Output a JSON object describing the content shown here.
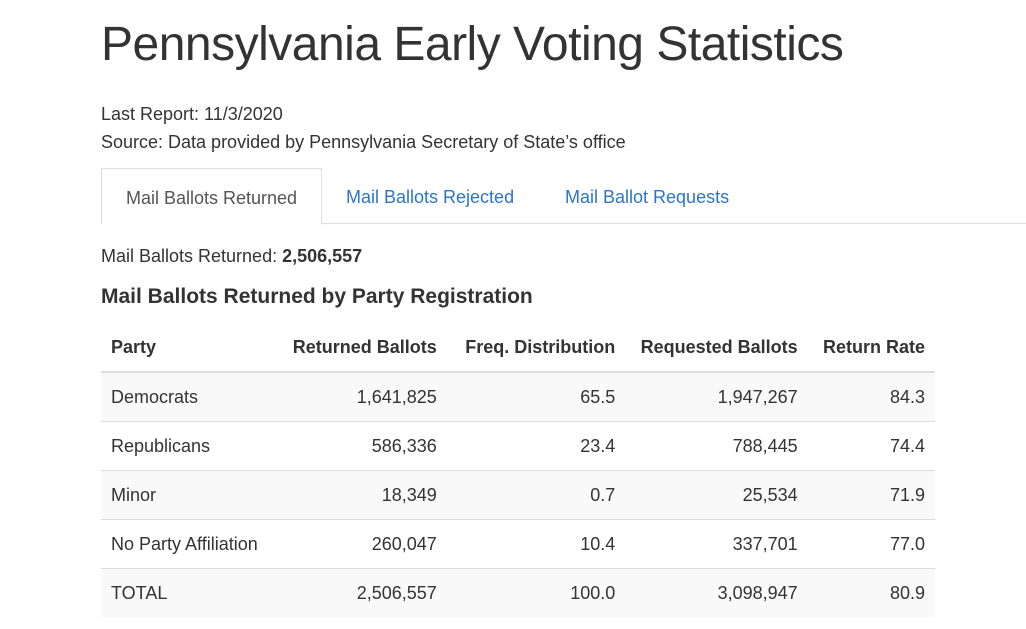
{
  "page": {
    "title": "Pennsylvania Early Voting Statistics",
    "last_report": "Last Report: 11/3/2020",
    "source": "Source: Data provided by Pennsylvania Secretary of State’s office"
  },
  "tabs": [
    {
      "label": "Mail Ballots Returned",
      "active": true
    },
    {
      "label": "Mail Ballots Rejected",
      "active": false
    },
    {
      "label": "Mail Ballot Requests",
      "active": false
    }
  ],
  "summary": {
    "label": "Mail Ballots Returned:",
    "value": "2,506,557"
  },
  "section_title": "Mail Ballots Returned by Party Registration",
  "table": {
    "headers": [
      "Party",
      "Returned Ballots",
      "Freq. Distribution",
      "Requested Ballots",
      "Return Rate"
    ],
    "rows": [
      [
        "Democrats",
        "1,641,825",
        "65.5",
        "1,947,267",
        "84.3"
      ],
      [
        "Republicans",
        "586,336",
        "23.4",
        "788,445",
        "74.4"
      ],
      [
        "Minor",
        "18,349",
        "0.7",
        "25,534",
        "71.9"
      ],
      [
        "No Party Affiliation",
        "260,047",
        "10.4",
        "337,701",
        "77.0"
      ],
      [
        "TOTAL",
        "2,506,557",
        "100.0",
        "3,098,947",
        "80.9"
      ]
    ]
  },
  "colors": {
    "link": "#2f74c9",
    "text": "#333333",
    "border": "#dddddd",
    "stripe": "#f9f9f9"
  }
}
